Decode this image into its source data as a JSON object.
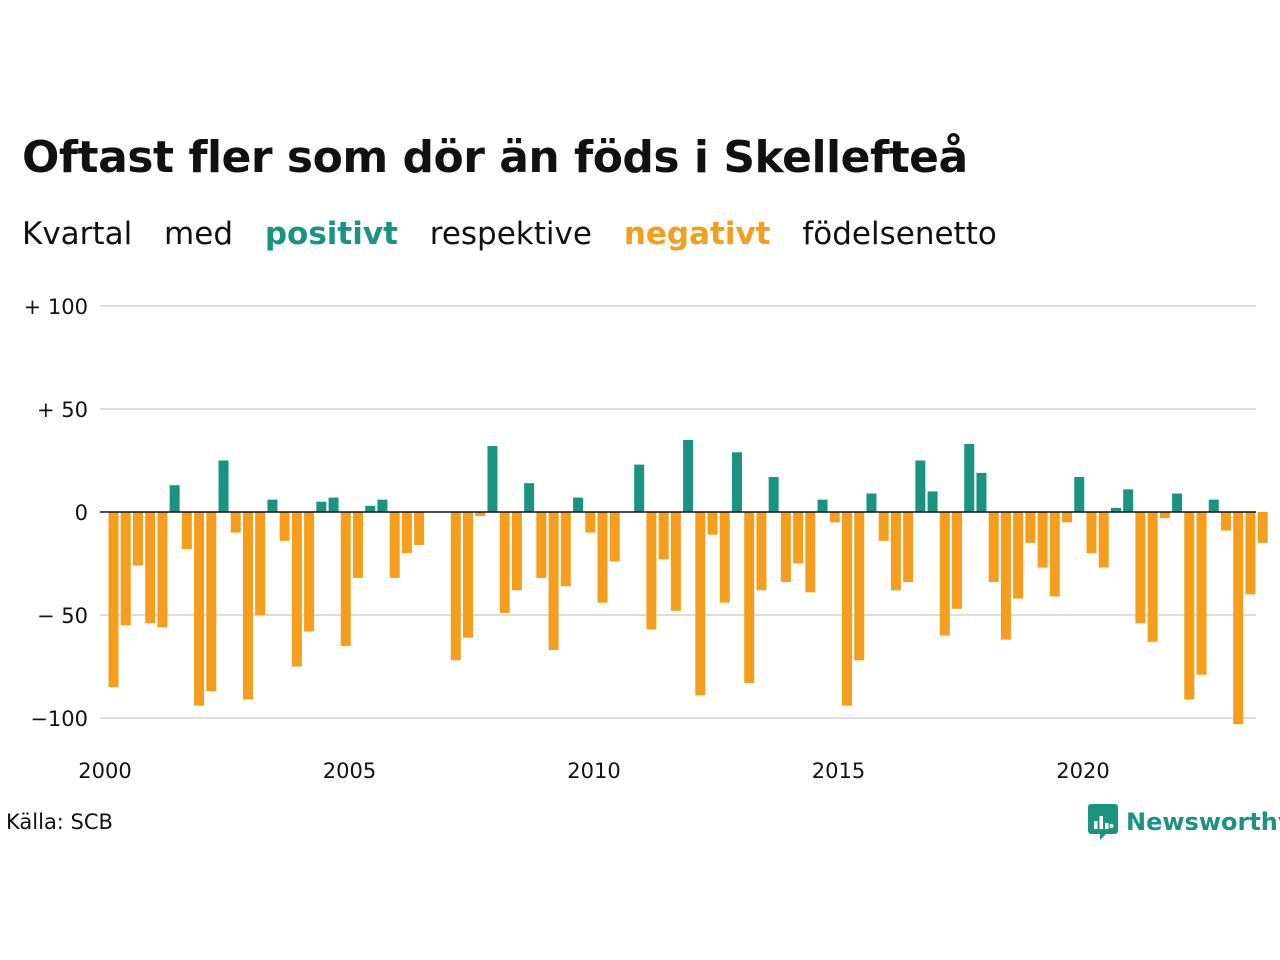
{
  "title": "Oftast fler som dör än föds i Skellefteå",
  "subtitle": {
    "part1": "Kvartal",
    "part2": "med",
    "positive_word": "positivt",
    "part3": "respektive",
    "negative_word": "negativt",
    "part4": "födelsenetto"
  },
  "source": "Källa: SCB",
  "brand": "Newsworthy",
  "colors": {
    "positive": "#1a9480",
    "negative": "#f59e1e",
    "grid": "#dddddd",
    "zero_line": "#111111"
  },
  "chart_data": {
    "type": "bar",
    "title": "Oftast fler som dör än föds i Skellefteå",
    "xlabel": "",
    "ylabel": "",
    "ylim": [
      -105,
      100
    ],
    "yticks": [
      {
        "value": 100,
        "label": "+ 100"
      },
      {
        "value": 50,
        "label": "+  50"
      },
      {
        "value": 0,
        "label": "0"
      },
      {
        "value": -50,
        "label": "− 50"
      },
      {
        "value": -100,
        "label": "−100"
      }
    ],
    "xticks": [
      {
        "value": 2000,
        "label": "2000"
      },
      {
        "value": 2005,
        "label": "2005"
      },
      {
        "value": 2010,
        "label": "2010"
      },
      {
        "value": 2015,
        "label": "2015"
      },
      {
        "value": 2020,
        "label": "2020"
      }
    ],
    "grid": true,
    "legend": "none",
    "first_quarter": "2000 Q1",
    "values": [
      -85,
      -55,
      -26,
      -54,
      -56,
      13,
      -18,
      -94,
      -87,
      25,
      -10,
      -91,
      -50,
      6,
      -14,
      -75,
      -58,
      5,
      7,
      -65,
      -32,
      3,
      6,
      -32,
      -20,
      -16,
      0,
      0,
      -72,
      -61,
      -2,
      32,
      -49,
      -38,
      14,
      -32,
      -67,
      -36,
      7,
      -10,
      -44,
      -24,
      0,
      23,
      -57,
      -23,
      -48,
      35,
      -89,
      -11,
      -44,
      29,
      -83,
      -38,
      17,
      -34,
      -25,
      -39,
      6,
      -5,
      -94,
      -72,
      9,
      -14,
      -38,
      -34,
      25,
      10,
      -60,
      -47,
      33,
      19,
      -34,
      -62,
      -42,
      -15,
      -27,
      -41,
      -5,
      17,
      -20,
      -27,
      2,
      11,
      -54,
      -63,
      -3,
      9,
      -91,
      -79,
      6,
      -9,
      -103,
      -40,
      -15
    ]
  }
}
